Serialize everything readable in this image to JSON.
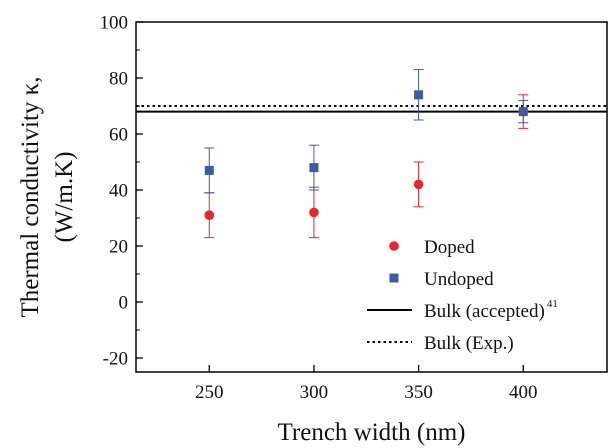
{
  "chart_data": {
    "type": "scatter",
    "xlabel": "Trench width (nm)",
    "ylabel_line1": "Thermal conductivity κ,",
    "ylabel_line2": "(W/m.K)",
    "xlim": [
      215,
      440
    ],
    "ylim": [
      -25,
      100
    ],
    "xticks": [
      250,
      300,
      350,
      400
    ],
    "yticks": [
      -20,
      0,
      20,
      40,
      60,
      80,
      100
    ],
    "grid": false,
    "legend_position": "bottom-right",
    "series": [
      {
        "name": "Doped",
        "marker": "circle",
        "color": "#e8262b",
        "x": [
          250,
          300,
          350,
          400
        ],
        "y": [
          31,
          32,
          42,
          68
        ],
        "err": [
          8,
          9,
          8,
          6
        ]
      },
      {
        "name": "Undoped",
        "marker": "square",
        "color": "#3d5aa8",
        "x": [
          250,
          300,
          350,
          400
        ],
        "y": [
          47,
          48,
          74,
          68
        ],
        "err": [
          8,
          8,
          9,
          4
        ]
      }
    ],
    "reference_lines": [
      {
        "name": "Bulk (accepted)",
        "superscript": "41",
        "y": 68,
        "style": "solid",
        "color": "#000000"
      },
      {
        "name": "Bulk (Exp.)",
        "y": 70,
        "style": "dotted",
        "color": "#000000"
      }
    ]
  }
}
